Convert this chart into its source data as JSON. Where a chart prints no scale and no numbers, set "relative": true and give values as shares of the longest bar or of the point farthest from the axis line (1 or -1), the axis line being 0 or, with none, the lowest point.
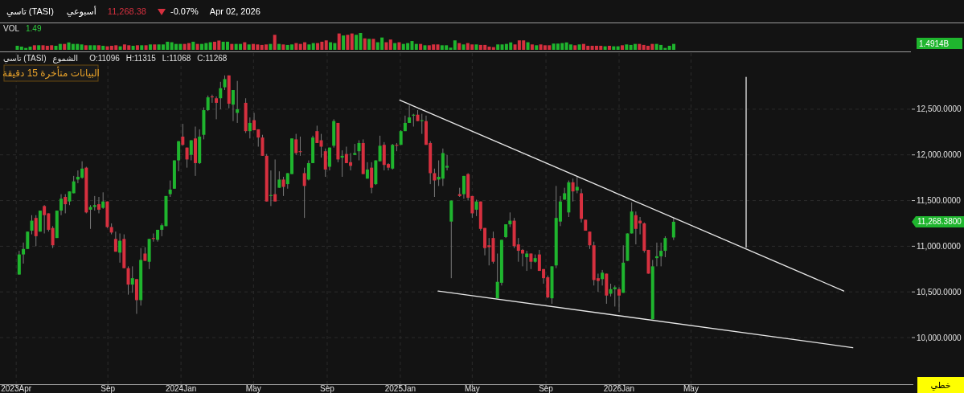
{
  "chart_data": [
    {
      "type": "other",
      "title": "تاسي (TASI)",
      "annotations": [
        "أسبوعي",
        "11,268.38",
        "-0.07%",
        "Apr 02, 2026"
      ]
    },
    {
      "type": "bar",
      "relative": true,
      "title": "VOL",
      "annotations": [
        "1.49",
        "1.4914B"
      ],
      "categories": [
        null,
        null,
        null,
        null,
        null,
        null,
        null,
        null,
        null,
        null,
        null,
        null,
        null,
        null,
        null,
        null,
        null,
        null,
        null,
        null,
        null,
        null,
        null,
        null,
        null,
        null,
        null,
        null,
        null,
        null,
        null,
        null,
        null,
        null,
        null,
        null,
        null,
        null,
        null,
        null,
        null,
        null,
        null,
        null,
        null,
        null,
        null,
        null,
        null,
        null,
        null,
        null,
        null,
        null,
        null,
        null,
        null,
        null,
        null,
        null,
        null,
        null,
        null,
        null,
        null,
        null,
        null,
        null,
        null,
        null,
        null,
        null,
        null,
        null,
        null,
        null,
        null,
        null,
        null,
        null,
        null,
        null,
        null,
        null,
        null,
        null,
        null,
        null,
        null,
        null,
        null,
        null,
        null,
        null,
        null,
        null,
        null,
        null,
        null,
        null,
        null,
        null,
        null,
        null,
        null,
        null,
        null,
        null,
        null,
        null,
        null,
        null,
        null,
        null,
        null,
        null,
        null,
        null,
        null,
        null,
        null,
        null,
        null,
        null,
        null,
        null,
        null,
        null,
        null,
        null,
        null,
        null,
        null,
        null,
        null,
        null,
        null,
        null,
        null,
        null,
        null,
        null,
        null,
        null,
        null,
        null,
        null,
        null,
        null,
        null,
        null,
        null,
        null,
        null
      ],
      "values": [
        0.24,
        0.19,
        0.11,
        0.19,
        0.27,
        0.27,
        0.27,
        0.24,
        0.27,
        0.24,
        0.35,
        0.35,
        0.44,
        0.35,
        0.35,
        0.32,
        0.27,
        0.27,
        0.27,
        0.27,
        0.24,
        0.21,
        0.24,
        0.27,
        0.21,
        0.32,
        0.27,
        0.24,
        0.27,
        0.27,
        0.27,
        0.32,
        0.32,
        0.32,
        0.32,
        0.48,
        0.45,
        0.35,
        0.35,
        0.35,
        0.4,
        0.48,
        0.35,
        0.35,
        0.4,
        0.45,
        0.48,
        0.55,
        0.48,
        0.48,
        0.35,
        0.35,
        0.35,
        0.45,
        0.32,
        0.35,
        0.32,
        0.29,
        0.32,
        0.35,
        0.89,
        0.35,
        0.32,
        0.29,
        0.32,
        0.4,
        0.35,
        0.45,
        0.32,
        0.4,
        0.4,
        0.48,
        0.56,
        0.45,
        0.4,
        0.97,
        0.85,
        0.89,
        0.97,
        0.89,
        1,
        0.68,
        0.65,
        0.65,
        0.45,
        0.73,
        0.45,
        0.61,
        0.4,
        0.45,
        0.35,
        0.4,
        0.52,
        0.35,
        0.35,
        0.27,
        0.27,
        0.32,
        0.32,
        0.27,
        0.27,
        0.13,
        0.56,
        0.4,
        0.32,
        0.4,
        0.32,
        0.32,
        0.29,
        0.29,
        0.19,
        0.16,
        0.32,
        0.32,
        0.35,
        0.44,
        0.32,
        0.56,
        0.56,
        0.45,
        0.32,
        0.27,
        0.32,
        0.27,
        0.27,
        0.37,
        0.37,
        0.4,
        0.44,
        0.32,
        0.27,
        0.32,
        0.35,
        0.24,
        0.24,
        0.24,
        0.24,
        0.21,
        0.24,
        0.21,
        0.21,
        0.27,
        0.32,
        0.29,
        0.35,
        0.35,
        0.29,
        0.24,
        0.35,
        0.35,
        0.29,
        0.11,
        0.24,
        0.35
      ],
      "colors": [
        "#1fb52e",
        "#1fb52e",
        "#1fb52e",
        "#1fb52e",
        "#d6303f",
        "#1fb52e",
        "#d6303f",
        "#d6303f",
        "#d6303f",
        "#1fb52e",
        "#1fb52e",
        "#d6303f",
        "#1fb52e",
        "#1fb52e",
        "#1fb52e",
        "#1fb52e",
        "#d6303f",
        "#1fb52e",
        "#1fb52e",
        "#d6303f",
        "#1fb52e",
        "#d6303f",
        "#d6303f",
        "#d6303f",
        "#1fb52e",
        "#d6303f",
        "#d6303f",
        "#1fb52e",
        "#d6303f",
        "#1fb52e",
        "#d6303f",
        "#1fb52e",
        "#d6303f",
        "#1fb52e",
        "#1fb52e",
        "#1fb52e",
        "#1fb52e",
        "#1fb52e",
        "#1fb52e",
        "#d6303f",
        "#d6303f",
        "#1fb52e",
        "#d6303f",
        "#1fb52e",
        "#1fb52e",
        "#1fb52e",
        "#d6303f",
        "#d6303f",
        "#1fb52e",
        "#1fb52e",
        "#d6303f",
        "#1fb52e",
        "#1fb52e",
        "#d6303f",
        "#1fb52e",
        "#d6303f",
        "#d6303f",
        "#d6303f",
        "#d6303f",
        "#1fb52e",
        "#d6303f",
        "#1fb52e",
        "#d6303f",
        "#1fb52e",
        "#1fb52e",
        "#d6303f",
        "#d6303f",
        "#d6303f",
        "#1fb52e",
        "#1fb52e",
        "#d6303f",
        "#d6303f",
        "#d6303f",
        "#1fb52e",
        "#1fb52e",
        "#d6303f",
        "#1fb52e",
        "#d6303f",
        "#d6303f",
        "#1fb52e",
        "#1fb52e",
        "#d6303f",
        "#1fb52e",
        "#d6303f",
        "#1fb52e",
        "#1fb52e",
        "#d6303f",
        "#d6303f",
        "#1fb52e",
        "#d6303f",
        "#1fb52e",
        "#1fb52e",
        "#1fb52e",
        "#1fb52e",
        "#d6303f",
        "#1fb52e",
        "#d6303f",
        "#d6303f",
        "#d6303f",
        "#1fb52e",
        "#1fb52e",
        "#1fb52e",
        "#1fb52e",
        "#d6303f",
        "#1fb52e",
        "#d6303f",
        "#d6303f",
        "#1fb52e",
        "#d6303f",
        "#d6303f",
        "#d6303f",
        "#d6303f",
        "#1fb52e",
        "#1fb52e",
        "#1fb52e",
        "#1fb52e",
        "#d6303f",
        "#d6303f",
        "#d6303f",
        "#1fb52e",
        "#d6303f",
        "#1fb52e",
        "#d6303f",
        "#d6303f",
        "#d6303f",
        "#1fb52e",
        "#1fb52e",
        "#1fb52e",
        "#1fb52e",
        "#1fb52e",
        "#d6303f",
        "#1fb52e",
        "#d6303f",
        "#d6303f",
        "#d6303f",
        "#d6303f",
        "#d6303f",
        "#1fb52e",
        "#d6303f",
        "#1fb52e",
        "#1fb52e",
        "#d6303f",
        "#1fb52e",
        "#1fb52e",
        "#1fb52e",
        "#d6303f",
        "#d6303f",
        "#d6303f",
        "#d6303f",
        "#1fb52e",
        "#1fb52e",
        "#1fb52e",
        "#1fb52e",
        "#1fb52e"
      ]
    },
    {
      "type": "candlestick",
      "grid": true,
      "xlim": [
        "2023-03-05",
        "2027-05-03"
      ],
      "ylim": [
        9490,
        13115
      ],
      "xticks": [
        {
          "value": "2023-04-01",
          "label": "2023Apr"
        },
        {
          "value": "2023-09-01",
          "label": "Sep"
        },
        {
          "value": "2024-01-01",
          "label": "2024Jan"
        },
        {
          "value": "2024-05-01",
          "label": "May"
        },
        {
          "value": "2024-09-01",
          "label": "Sep"
        },
        {
          "value": "2025-01-01",
          "label": "2025Jan"
        },
        {
          "value": "2025-05-01",
          "label": "May"
        },
        {
          "value": "2025-09-01",
          "label": "Sep"
        },
        {
          "value": "2026-01-01",
          "label": "2026Jan"
        },
        {
          "value": "2026-05-01",
          "label": "May"
        }
      ],
      "yticks": [
        {
          "value": 10000,
          "label": "10,000.0000"
        },
        {
          "value": 10500,
          "label": "10,500.0000"
        },
        {
          "value": 11000,
          "label": "11,000.0000"
        },
        {
          "value": 11500,
          "label": "11,500.0000"
        },
        {
          "value": 12000,
          "label": "12,000.0000"
        },
        {
          "value": 12500,
          "label": "12,500.0000"
        }
      ],
      "annotations": [
        "11,268.3800",
        "تاسي (TASI)",
        "الشموع",
        "O:11096",
        "H:11315",
        "L:11068",
        "C:11268",
        "البيانات متأخرة 15 دقيقة",
        "خطي"
      ],
      "series": [
        {
          "type": "candlestick",
          "x": [
            "2023-04-06",
            "2023-04-13",
            "2023-04-20",
            "2023-04-27",
            "2023-05-04",
            "2023-05-11",
            "2023-05-18",
            "2023-05-25",
            "2023-06-01",
            "2023-06-08",
            "2023-06-15",
            "2023-06-22",
            "2023-06-29",
            "2023-07-06",
            "2023-07-13",
            "2023-07-20",
            "2023-07-27",
            "2023-08-03",
            "2023-08-10",
            "2023-08-17",
            "2023-08-24",
            "2023-08-31",
            "2023-09-07",
            "2023-09-14",
            "2023-09-21",
            "2023-09-28",
            "2023-10-05",
            "2023-10-12",
            "2023-10-19",
            "2023-10-26",
            "2023-11-02",
            "2023-11-09",
            "2023-11-16",
            "2023-11-23",
            "2023-11-30",
            "2023-12-07",
            "2023-12-14",
            "2023-12-21",
            "2023-12-28",
            "2024-01-04",
            "2024-01-11",
            "2024-01-18",
            "2024-01-25",
            "2024-02-01",
            "2024-02-08",
            "2024-02-15",
            "2024-02-22",
            "2024-02-29",
            "2024-03-07",
            "2024-03-14",
            "2024-03-21",
            "2024-03-28",
            "2024-04-04",
            "2024-04-18",
            "2024-04-25",
            "2024-05-02",
            "2024-05-09",
            "2024-05-16",
            "2024-05-23",
            "2024-05-30",
            "2024-06-06",
            "2024-06-13",
            "2024-06-20",
            "2024-06-27",
            "2024-07-04",
            "2024-07-11",
            "2024-07-18",
            "2024-07-25",
            "2024-08-01",
            "2024-08-08",
            "2024-08-15",
            "2024-08-22",
            "2024-08-29",
            "2024-09-05",
            "2024-09-12",
            "2024-09-19",
            "2024-09-26",
            "2024-10-03",
            "2024-10-10",
            "2024-10-17",
            "2024-10-24",
            "2024-10-31",
            "2024-11-07",
            "2024-11-14",
            "2024-11-21",
            "2024-11-28",
            "2024-12-05",
            "2024-12-12",
            "2024-12-19",
            "2024-12-26",
            "2025-01-02",
            "2025-01-09",
            "2025-01-16",
            "2025-01-23",
            "2025-01-30",
            "2025-02-06",
            "2025-02-13",
            "2025-02-20",
            "2025-02-27",
            "2025-03-06",
            "2025-03-13",
            "2025-03-20",
            "2025-03-27",
            "2025-04-10",
            "2025-04-17",
            "2025-04-24",
            "2025-05-01",
            "2025-05-08",
            "2025-05-15",
            "2025-05-22",
            "2025-05-29",
            "2025-06-05",
            "2025-06-12",
            "2025-06-19",
            "2025-06-26",
            "2025-07-03",
            "2025-07-10",
            "2025-07-17",
            "2025-07-24",
            "2025-07-31",
            "2025-08-07",
            "2025-08-14",
            "2025-08-21",
            "2025-08-28",
            "2025-09-04",
            "2025-09-11",
            "2025-09-18",
            "2025-09-25",
            "2025-10-02",
            "2025-10-09",
            "2025-10-16",
            "2025-10-23",
            "2025-10-30",
            "2025-11-06",
            "2025-11-13",
            "2025-11-20",
            "2025-11-27",
            "2025-12-04",
            "2025-12-11",
            "2025-12-18",
            "2025-12-25",
            "2026-01-01",
            "2026-01-08",
            "2026-01-15",
            "2026-01-22",
            "2026-01-29",
            "2026-02-05",
            "2026-02-12",
            "2026-02-19",
            "2026-02-26",
            "2026-03-05",
            "2026-03-12",
            "2026-03-19",
            "2026-04-02"
          ],
          "ohlc": [
            [
              10690,
              10950,
              10690,
              10910
            ],
            [
              10910,
              11040,
              10810,
              10970
            ],
            [
              10970,
              11160,
              10970,
              11160
            ],
            [
              11170,
              11340,
              11130,
              11280
            ],
            [
              11310,
              11340,
              11000,
              11110
            ],
            [
              11160,
              11390,
              11160,
              11390
            ],
            [
              11440,
              11450,
              11140,
              11340
            ],
            [
              11360,
              11360,
              11160,
              11180
            ],
            [
              11200,
              11220,
              10980,
              11010
            ],
            [
              11090,
              11390,
              11090,
              11390
            ],
            [
              11390,
              11570,
              11340,
              11520
            ],
            [
              11540,
              11570,
              11360,
              11460
            ],
            [
              11490,
              11600,
              11450,
              11600
            ],
            [
              11580,
              11770,
              11580,
              11710
            ],
            [
              11730,
              11830,
              11690,
              11760
            ],
            [
              11750,
              11930,
              11740,
              11850
            ],
            [
              11860,
              11870,
              11360,
              11370
            ],
            [
              11400,
              11450,
              11190,
              11430
            ],
            [
              11430,
              11550,
              11390,
              11450
            ],
            [
              11460,
              11540,
              11360,
              11400
            ],
            [
              11420,
              11590,
              11410,
              11490
            ],
            [
              11490,
              11490,
              11200,
              11210
            ],
            [
              11210,
              11250,
              11130,
              11150
            ],
            [
              11080,
              11160,
              10940,
              10940
            ],
            [
              10930,
              11140,
              10820,
              11060
            ],
            [
              11080,
              11130,
              10760,
              10760
            ],
            [
              10760,
              10780,
              10470,
              10580
            ],
            [
              10580,
              10780,
              10490,
              10650
            ],
            [
              10640,
              10640,
              10260,
              10410
            ],
            [
              10410,
              10980,
              10350,
              10850
            ],
            [
              10920,
              10990,
              10840,
              10840
            ],
            [
              10830,
              11080,
              10750,
              11080
            ],
            [
              11090,
              11140,
              11050,
              11080
            ],
            [
              11070,
              11180,
              11050,
              11180
            ],
            [
              11180,
              11250,
              11110,
              11230
            ],
            [
              11220,
              11550,
              11220,
              11550
            ],
            [
              11570,
              11720,
              11540,
              11620
            ],
            [
              11630,
              11940,
              11630,
              11940
            ],
            [
              11940,
              12150,
              11820,
              12150
            ],
            [
              12200,
              12340,
              12100,
              12110
            ],
            [
              12080,
              12080,
              11860,
              11950
            ],
            [
              12000,
              12160,
              11940,
              12160
            ],
            [
              12180,
              12310,
              11770,
              11910
            ],
            [
              11910,
              12280,
              11900,
              12200
            ],
            [
              12220,
              12520,
              12170,
              12490
            ],
            [
              12490,
              12650,
              12480,
              12630
            ],
            [
              12640,
              12660,
              12570,
              12630
            ],
            [
              12620,
              12640,
              12390,
              12570
            ],
            [
              12620,
              12800,
              12500,
              12730
            ],
            [
              12740,
              12870,
              12710,
              12830
            ],
            [
              12870,
              12870,
              12510,
              12560
            ],
            [
              12550,
              12710,
              12370,
              12710
            ],
            [
              12460,
              12810,
              12350,
              12500
            ],
            [
              12570,
              12620,
              12240,
              12260
            ],
            [
              12260,
              12410,
              12180,
              12350
            ],
            [
              12380,
              12460,
              12270,
              12270
            ],
            [
              12280,
              12280,
              12090,
              12190
            ],
            [
              12190,
              12220,
              11990,
              11990
            ],
            [
              11990,
              12010,
              11490,
              11490
            ],
            [
              11550,
              11830,
              11440,
              11560
            ],
            [
              11570,
              11950,
              11490,
              11490
            ],
            [
              11640,
              11820,
              11640,
              11730
            ],
            [
              11730,
              11760,
              11550,
              11650
            ],
            [
              11680,
              11800,
              11630,
              11800
            ],
            [
              11790,
              12180,
              11790,
              12180
            ],
            [
              12170,
              12230,
              12000,
              12020
            ],
            [
              12040,
              12200,
              11990,
              12030
            ],
            [
              11800,
              11860,
              11310,
              11660
            ],
            [
              11730,
              11940,
              11720,
              11910
            ],
            [
              11910,
              12210,
              11910,
              12190
            ],
            [
              12260,
              12320,
              12130,
              12130
            ],
            [
              12160,
              12230,
              11970,
              12090
            ],
            [
              12040,
              12070,
              11760,
              11840
            ],
            [
              11870,
              12080,
              11830,
              12080
            ],
            [
              12100,
              12390,
              12080,
              12370
            ],
            [
              12350,
              12350,
              11920,
              11950
            ],
            [
              11970,
              12050,
              11760,
              11990
            ],
            [
              12010,
              12090,
              11910,
              11910
            ],
            [
              11920,
              12020,
              11830,
              11880
            ],
            [
              12000,
              12120,
              12000,
              12020
            ],
            [
              12040,
              12160,
              11940,
              12130
            ],
            [
              12130,
              12170,
              11790,
              11790
            ],
            [
              11740,
              11920,
              11740,
              11840
            ],
            [
              11860,
              11920,
              11580,
              11640
            ],
            [
              11680,
              11940,
              11670,
              11940
            ],
            [
              11930,
              12210,
              11930,
              12100
            ],
            [
              12110,
              12140,
              11830,
              11890
            ],
            [
              11900,
              11910,
              11830,
              11860
            ],
            [
              11850,
              12120,
              11840,
              12110
            ],
            [
              12110,
              12130,
              12040,
              12100
            ],
            [
              12110,
              12270,
              12110,
              12260
            ],
            [
              12260,
              12430,
              12260,
              12350
            ],
            [
              12350,
              12540,
              12350,
              12410
            ],
            [
              12430,
              12450,
              12310,
              12440
            ],
            [
              12440,
              12490,
              12370,
              12370
            ],
            [
              12370,
              12450,
              12230,
              12380
            ],
            [
              12370,
              12430,
              12110,
              12110
            ],
            [
              12130,
              12150,
              11680,
              11800
            ],
            [
              11800,
              11850,
              11540,
              11720
            ],
            [
              11730,
              11940,
              11660,
              11760
            ],
            [
              11740,
              12070,
              11660,
              12020
            ],
            [
              11860,
              12000,
              11830,
              11880
            ],
            [
              11270,
              11500,
              10650,
              11500
            ],
            [
              11570,
              11640,
              11540,
              11550
            ],
            [
              11570,
              11770,
              11520,
              11770
            ],
            [
              11790,
              11800,
              11500,
              11530
            ],
            [
              11550,
              11550,
              11310,
              11360
            ],
            [
              11400,
              11510,
              11330,
              11490
            ],
            [
              11490,
              11490,
              11170,
              11190
            ],
            [
              11200,
              11200,
              10900,
              10980
            ],
            [
              11010,
              11090,
              10790,
              10990
            ],
            [
              11090,
              11160,
              10810,
              10830
            ],
            [
              10430,
              10920,
              10430,
              10610
            ],
            [
              10600,
              11070,
              10570,
              11070
            ],
            [
              11100,
              11240,
              11090,
              11240
            ],
            [
              11240,
              11370,
              11210,
              11280
            ],
            [
              11280,
              11310,
              10980,
              11000
            ],
            [
              11020,
              11090,
              10830,
              10950
            ],
            [
              10960,
              10970,
              10780,
              10920
            ],
            [
              10880,
              10950,
              10730,
              10920
            ],
            [
              10920,
              10920,
              10750,
              10830
            ],
            [
              10830,
              10910,
              10820,
              10870
            ],
            [
              10910,
              10960,
              10730,
              10730
            ],
            [
              10750,
              10750,
              10590,
              10650
            ],
            [
              10660,
              10680,
              10430,
              10440
            ],
            [
              10430,
              10780,
              10370,
              10780
            ],
            [
              10790,
              11660,
              10760,
              11310
            ],
            [
              11270,
              11550,
              11220,
              11490
            ],
            [
              11510,
              11640,
              11510,
              11580
            ],
            [
              11370,
              11720,
              11320,
              11700
            ],
            [
              11700,
              11740,
              11490,
              11600
            ],
            [
              11610,
              11760,
              11580,
              11650
            ],
            [
              11580,
              11630,
              11260,
              11300
            ],
            [
              11290,
              11290,
              11170,
              11170
            ],
            [
              11160,
              11160,
              10970,
              11010
            ],
            [
              11010,
              11050,
              10570,
              10630
            ],
            [
              10650,
              10700,
              10500,
              10620
            ],
            [
              10640,
              10740,
              10570,
              10710
            ],
            [
              10700,
              10700,
              10370,
              10460
            ],
            [
              10480,
              10590,
              10450,
              10530
            ],
            [
              10530,
              10570,
              10340,
              10550
            ],
            [
              10530,
              10550,
              10280,
              10460
            ],
            [
              10490,
              11010,
              10490,
              10820
            ],
            [
              10840,
              11140,
              10840,
              11140
            ],
            [
              11140,
              11480,
              11140,
              11380
            ],
            [
              11340,
              11380,
              11020,
              11190
            ],
            [
              11280,
              11320,
              11130,
              11250
            ],
            [
              11250,
              11260,
              10930,
              10950
            ],
            [
              10960,
              10960,
              10700,
              10700
            ],
            [
              10200,
              10850,
              10200,
              10780
            ],
            [
              10870,
              11040,
              10780,
              10890
            ],
            [
              10890,
              11040,
              10780,
              10950
            ],
            [
              10950,
              11110,
              10880,
              11090
            ],
            [
              11096,
              11315,
              11068,
              11268
            ]
          ],
          "colors": [
            "#1fb52e",
            "#1fb52e",
            "#1fb52e",
            "#1fb52e",
            "#d6303f",
            "#1fb52e",
            "#d6303f",
            "#d6303f",
            "#d6303f",
            "#1fb52e",
            "#1fb52e",
            "#d6303f",
            "#1fb52e",
            "#1fb52e",
            "#1fb52e",
            "#1fb52e",
            "#d6303f",
            "#1fb52e",
            "#1fb52e",
            "#d6303f",
            "#1fb52e",
            "#d6303f",
            "#d6303f",
            "#d6303f",
            "#1fb52e",
            "#d6303f",
            "#d6303f",
            "#1fb52e",
            "#d6303f",
            "#1fb52e",
            "#d6303f",
            "#1fb52e",
            "#d6303f",
            "#1fb52e",
            "#1fb52e",
            "#1fb52e",
            "#1fb52e",
            "#1fb52e",
            "#1fb52e",
            "#d6303f",
            "#d6303f",
            "#1fb52e",
            "#d6303f",
            "#1fb52e",
            "#1fb52e",
            "#1fb52e",
            "#d6303f",
            "#d6303f",
            "#1fb52e",
            "#1fb52e",
            "#d6303f",
            "#1fb52e",
            "#1fb52e",
            "#d6303f",
            "#1fb52e",
            "#d6303f",
            "#d6303f",
            "#d6303f",
            "#d6303f",
            "#1fb52e",
            "#d6303f",
            "#1fb52e",
            "#d6303f",
            "#1fb52e",
            "#1fb52e",
            "#d6303f",
            "#d6303f",
            "#d6303f",
            "#1fb52e",
            "#1fb52e",
            "#d6303f",
            "#d6303f",
            "#d6303f",
            "#1fb52e",
            "#1fb52e",
            "#d6303f",
            "#1fb52e",
            "#d6303f",
            "#d6303f",
            "#1fb52e",
            "#1fb52e",
            "#d6303f",
            "#1fb52e",
            "#d6303f",
            "#1fb52e",
            "#1fb52e",
            "#d6303f",
            "#d6303f",
            "#1fb52e",
            "#d6303f",
            "#1fb52e",
            "#1fb52e",
            "#1fb52e",
            "#1fb52e",
            "#d6303f",
            "#1fb52e",
            "#d6303f",
            "#d6303f",
            "#d6303f",
            "#1fb52e",
            "#1fb52e",
            "#1fb52e",
            "#1fb52e",
            "#d6303f",
            "#1fb52e",
            "#d6303f",
            "#d6303f",
            "#1fb52e",
            "#d6303f",
            "#d6303f",
            "#d6303f",
            "#d6303f",
            "#1fb52e",
            "#1fb52e",
            "#1fb52e",
            "#1fb52e",
            "#d6303f",
            "#d6303f",
            "#d6303f",
            "#1fb52e",
            "#d6303f",
            "#1fb52e",
            "#d6303f",
            "#d6303f",
            "#d6303f",
            "#1fb52e",
            "#1fb52e",
            "#1fb52e",
            "#1fb52e",
            "#1fb52e",
            "#d6303f",
            "#1fb52e",
            "#d6303f",
            "#d6303f",
            "#d6303f",
            "#d6303f",
            "#d6303f",
            "#1fb52e",
            "#d6303f",
            "#1fb52e",
            "#1fb52e",
            "#d6303f",
            "#1fb52e",
            "#1fb52e",
            "#1fb52e",
            "#d6303f",
            "#d6303f",
            "#d6303f",
            "#d6303f",
            "#1fb52e",
            "#1fb52e",
            "#1fb52e",
            "#1fb52e",
            "#1fb52e"
          ]
        },
        {
          "type": "line",
          "color": "#e6e6e6",
          "x": [
            "2024-12-31",
            "2027-01-11"
          ],
          "values": [
            12600,
            10510
          ]
        },
        {
          "type": "line",
          "color": "#e6e6e6",
          "x": [
            "2025-03-05",
            "2027-01-26"
          ],
          "values": [
            10510,
            9890
          ]
        },
        {
          "type": "line",
          "color": "#e6e6e6",
          "x": [
            "2026-08-01",
            "2026-08-01"
          ],
          "values": [
            12850,
            10990
          ]
        }
      ]
    }
  ]
}
